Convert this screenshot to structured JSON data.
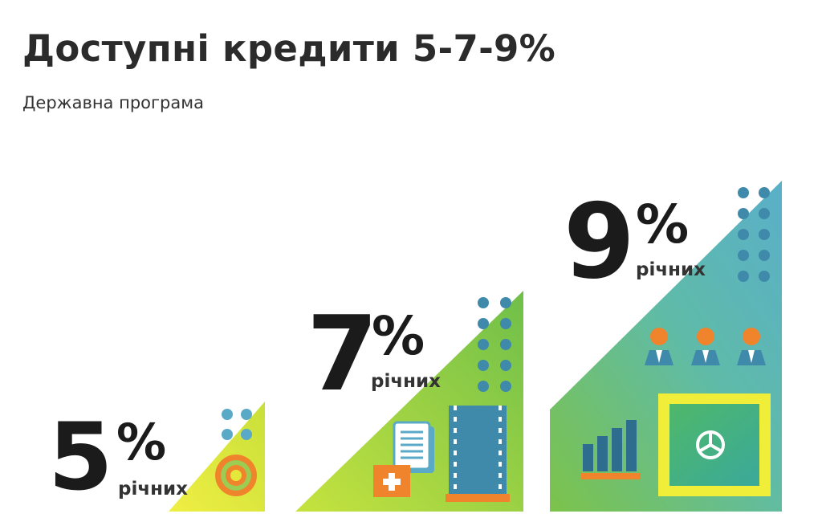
{
  "header": {
    "title": "Доступні кредити 5-7-9%",
    "subtitle": "Державна програма"
  },
  "rates": [
    {
      "number": "5",
      "percent_sign": "%",
      "unit": "річних"
    },
    {
      "number": "7",
      "percent_sign": "%",
      "unit": "річних"
    },
    {
      "number": "9",
      "percent_sign": "%",
      "unit": "річних"
    }
  ],
  "colors": {
    "yellow": "#e4e83a",
    "green": "#7cc242",
    "teal": "#5bb7b4",
    "blue_dot": "#3f89ab",
    "orange": "#f0842c",
    "dark_blue": "#2f6d8f"
  },
  "icons": [
    "target-icon",
    "document-icon",
    "first-aid-icon",
    "seedling-tray-icon",
    "bar-chart-icon",
    "people-icon",
    "safe-icon"
  ]
}
